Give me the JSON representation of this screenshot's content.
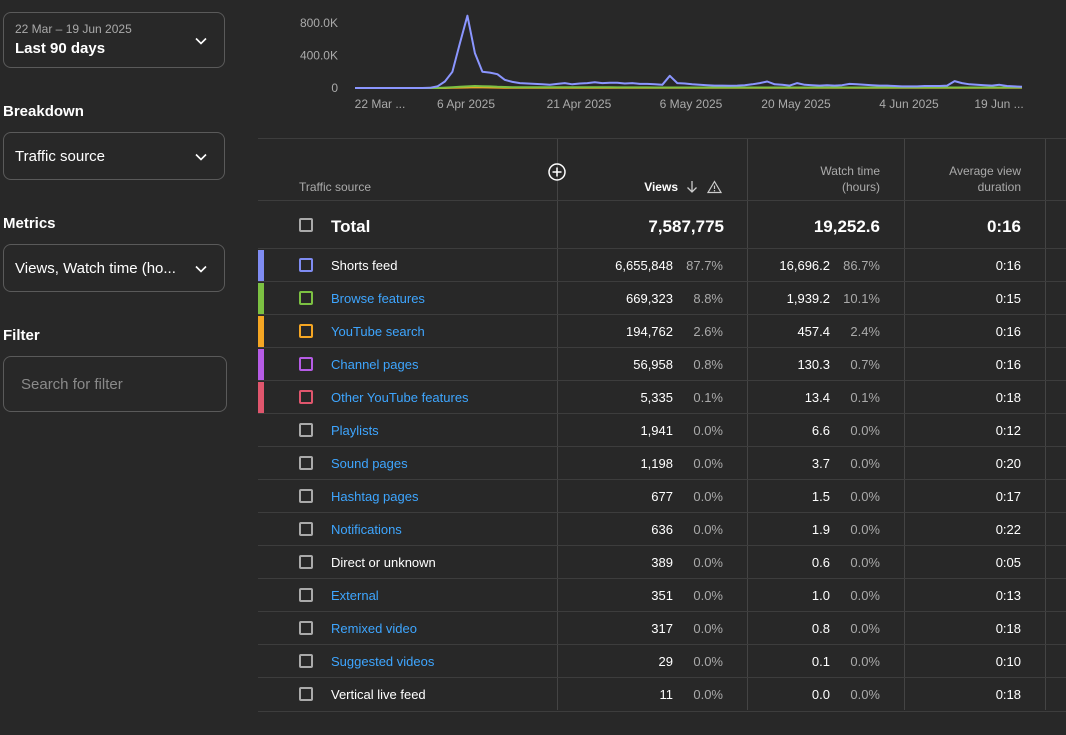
{
  "date_range": {
    "dates": "22 Mar – 19 Jun 2025",
    "label": "Last 90 days"
  },
  "breakdown": {
    "title": "Breakdown",
    "value": "Traffic source"
  },
  "metrics": {
    "title": "Metrics",
    "value": "Views, Watch time (ho..."
  },
  "filter": {
    "title": "Filter",
    "placeholder": "Search for filter"
  },
  "chart_data": {
    "type": "line",
    "y_ticks": [
      "800.0K",
      "400.0K",
      "0"
    ],
    "ylim": [
      0,
      1000000
    ],
    "x_ticks": [
      "22 Mar ...",
      "6 Apr 2025",
      "21 Apr 2025",
      "6 May 2025",
      "20 May 2025",
      "4 Jun 2025",
      "19 Jun ..."
    ],
    "x_range": [
      "2025-03-22",
      "2025-06-19"
    ],
    "series": [
      {
        "color": "#8b96ff",
        "values": [
          0,
          0,
          0,
          0,
          0,
          0,
          0,
          0,
          0,
          0,
          2000,
          20000,
          80000,
          200000,
          550000,
          890000,
          430000,
          200000,
          190000,
          170000,
          100000,
          75000,
          60000,
          55000,
          50000,
          45000,
          40000,
          50000,
          60000,
          45000,
          55000,
          60000,
          70000,
          60000,
          65000,
          65000,
          55000,
          60000,
          50000,
          50000,
          45000,
          40000,
          150000,
          60000,
          55000,
          45000,
          40000,
          35000,
          30000,
          30000,
          28000,
          30000,
          35000,
          45000,
          60000,
          80000,
          45000,
          40000,
          30000,
          60000,
          40000,
          35000,
          30000,
          35000,
          30000,
          35000,
          50000,
          45000,
          40000,
          35000,
          30000,
          30000,
          25000,
          20000,
          20000,
          20000,
          25000,
          25000,
          25000,
          30000,
          85000,
          60000,
          45000,
          40000,
          35000,
          30000,
          40000,
          25000,
          20000,
          15000
        ]
      },
      {
        "color": "#7cc142",
        "values": [
          0,
          0,
          0,
          0,
          0,
          0,
          0,
          0,
          0,
          0,
          0,
          0,
          5000,
          10000,
          15000,
          20000,
          25000,
          22000,
          20000,
          15000,
          12000,
          10000,
          10000,
          8000,
          8000,
          8000,
          8000,
          8000,
          8000,
          8000,
          8000,
          8000,
          8000,
          8000,
          8000,
          7000,
          7000,
          7000,
          7000,
          7000,
          6000,
          6000,
          6000,
          6000,
          6000,
          6000,
          6000,
          6000,
          6000,
          6000,
          6000,
          6000,
          6000,
          6000,
          6000,
          6000,
          6000,
          6000,
          6000,
          6000,
          6000,
          6000,
          6000,
          6000,
          6000,
          6000,
          6000,
          6000,
          6000,
          6000,
          6000,
          6000,
          6000,
          6000,
          6000,
          6000,
          6000,
          6000,
          6000,
          6000,
          6000,
          6000,
          6000,
          6000,
          6000,
          6000,
          6000,
          6000,
          6000,
          6000
        ]
      },
      {
        "color": "#f5a623",
        "values": [
          0,
          0,
          0,
          0,
          0,
          0,
          0,
          0,
          0,
          0,
          0,
          0,
          0,
          3000,
          5000,
          6000,
          8000,
          7000,
          6000,
          5000,
          4000,
          3000,
          3000,
          3000,
          3000,
          3000,
          3000,
          3000,
          3000,
          3000,
          3000,
          3000,
          3000,
          3000,
          3000,
          2000,
          2000,
          2000,
          2000,
          2000,
          2000,
          2000,
          2000,
          2000,
          2000,
          2000,
          2000,
          2000,
          2000,
          2000,
          2000,
          2000,
          2000,
          2000,
          2000,
          2000,
          2000,
          2000,
          2000,
          2000,
          2000,
          2000,
          2000,
          2000,
          2000,
          2000,
          2000,
          2000,
          2000,
          2000,
          2000,
          2000,
          2000,
          2000,
          2000,
          2000,
          2000,
          2000,
          2000,
          2000,
          2000,
          2000,
          2000,
          2000,
          2000,
          2000,
          2000,
          2000,
          2000,
          2000
        ]
      }
    ]
  },
  "table": {
    "headers": {
      "source": "Traffic source",
      "views": "Views",
      "watch_time_1": "Watch time",
      "watch_time_2": "(hours)",
      "avg_1": "Average view",
      "avg_2": "duration"
    },
    "total": {
      "label": "Total",
      "views": "7,587,775",
      "watch": "19,252.6",
      "avg": "0:16"
    },
    "rows": [
      {
        "source": "Shorts feed",
        "link": false,
        "color": "#7f8cf2",
        "views": "6,655,848",
        "views_pct": "87.7%",
        "watch": "16,696.2",
        "watch_pct": "86.7%",
        "avg": "0:16"
      },
      {
        "source": "Browse features",
        "link": true,
        "color": "#7cc142",
        "views": "669,323",
        "views_pct": "8.8%",
        "watch": "1,939.2",
        "watch_pct": "10.1%",
        "avg": "0:15"
      },
      {
        "source": "YouTube search",
        "link": true,
        "color": "#f5a623",
        "views": "194,762",
        "views_pct": "2.6%",
        "watch": "457.4",
        "watch_pct": "2.4%",
        "avg": "0:16"
      },
      {
        "source": "Channel pages",
        "link": true,
        "color": "#b65ce6",
        "views": "56,958",
        "views_pct": "0.8%",
        "watch": "130.3",
        "watch_pct": "0.7%",
        "avg": "0:16"
      },
      {
        "source": "Other YouTube features",
        "link": true,
        "color": "#e0566d",
        "views": "5,335",
        "views_pct": "0.1%",
        "watch": "13.4",
        "watch_pct": "0.1%",
        "avg": "0:18"
      },
      {
        "source": "Playlists",
        "link": true,
        "color": "",
        "views": "1,941",
        "views_pct": "0.0%",
        "watch": "6.6",
        "watch_pct": "0.0%",
        "avg": "0:12"
      },
      {
        "source": "Sound pages",
        "link": true,
        "color": "",
        "views": "1,198",
        "views_pct": "0.0%",
        "watch": "3.7",
        "watch_pct": "0.0%",
        "avg": "0:20"
      },
      {
        "source": "Hashtag pages",
        "link": true,
        "color": "",
        "views": "677",
        "views_pct": "0.0%",
        "watch": "1.5",
        "watch_pct": "0.0%",
        "avg": "0:17"
      },
      {
        "source": "Notifications",
        "link": true,
        "color": "",
        "views": "636",
        "views_pct": "0.0%",
        "watch": "1.9",
        "watch_pct": "0.0%",
        "avg": "0:22"
      },
      {
        "source": "Direct or unknown",
        "link": false,
        "color": "",
        "views": "389",
        "views_pct": "0.0%",
        "watch": "0.6",
        "watch_pct": "0.0%",
        "avg": "0:05"
      },
      {
        "source": "External",
        "link": true,
        "color": "",
        "views": "351",
        "views_pct": "0.0%",
        "watch": "1.0",
        "watch_pct": "0.0%",
        "avg": "0:13"
      },
      {
        "source": "Remixed video",
        "link": true,
        "color": "",
        "views": "317",
        "views_pct": "0.0%",
        "watch": "0.8",
        "watch_pct": "0.0%",
        "avg": "0:18"
      },
      {
        "source": "Suggested videos",
        "link": true,
        "color": "",
        "views": "29",
        "views_pct": "0.0%",
        "watch": "0.1",
        "watch_pct": "0.0%",
        "avg": "0:10"
      },
      {
        "source": "Vertical live feed",
        "link": false,
        "color": "",
        "views": "11",
        "views_pct": "0.0%",
        "watch": "0.0",
        "watch_pct": "0.0%",
        "avg": "0:18"
      }
    ]
  }
}
